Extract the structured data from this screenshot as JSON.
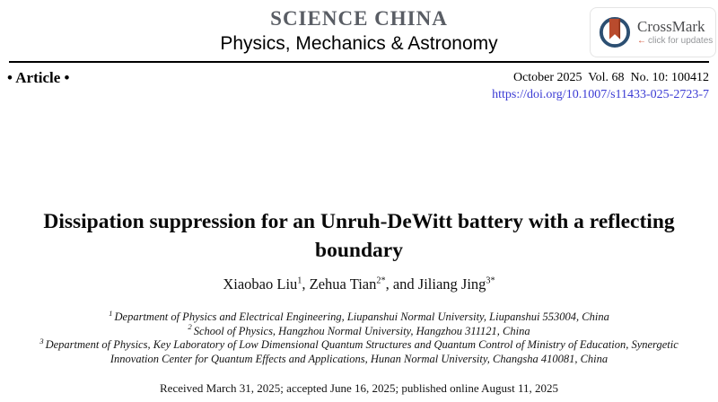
{
  "journal": {
    "name": "SCIENCE CHINA",
    "subtitle": "Physics, Mechanics & Astronomy"
  },
  "crossmark": {
    "title": "CrossMark",
    "arrow": "←",
    "tagline": "click for updates"
  },
  "meta": {
    "article_type": "• Article •",
    "issue_info": "October 2025  Vol. 68  No. 10: 100412",
    "doi": "https://doi.org/10.1007/s11433-025-2723-7"
  },
  "article": {
    "title": "Dissipation suppression for an Unruh-DeWitt battery with a reflecting boundary",
    "authors": [
      {
        "name": "Xiaobao Liu",
        "sup": "1",
        "sep": ", "
      },
      {
        "name": "Zehua Tian",
        "sup": "2*",
        "sep": ", and "
      },
      {
        "name": "Jiliang Jing",
        "sup": "3*",
        "sep": ""
      }
    ],
    "affiliations": [
      {
        "sup": "1",
        "text": "Department of Physics and Electrical Engineering, Liupanshui Normal University, Liupanshui 553004, China"
      },
      {
        "sup": "2",
        "text": "School of Physics, Hangzhou Normal University, Hangzhou 311121, China"
      },
      {
        "sup": "3",
        "text": "Department of Physics, Key Laboratory of Low Dimensional Quantum Structures and Quantum Control of Ministry of Education, Synergetic Innovation Center for Quantum Effects and Applications, Hunan Normal University, Changsha 410081, China"
      }
    ],
    "history": "Received March 31, 2025; accepted June 16, 2025; published online August 11, 2025"
  },
  "colors": {
    "journal_name": "#595d64",
    "doi_link": "#3b3bd4",
    "crossmark_ring": "#2c4f72",
    "crossmark_ribbon": "#b94b2d",
    "crossmark_arrow": "#cf4a2d",
    "rule": "#000000"
  }
}
